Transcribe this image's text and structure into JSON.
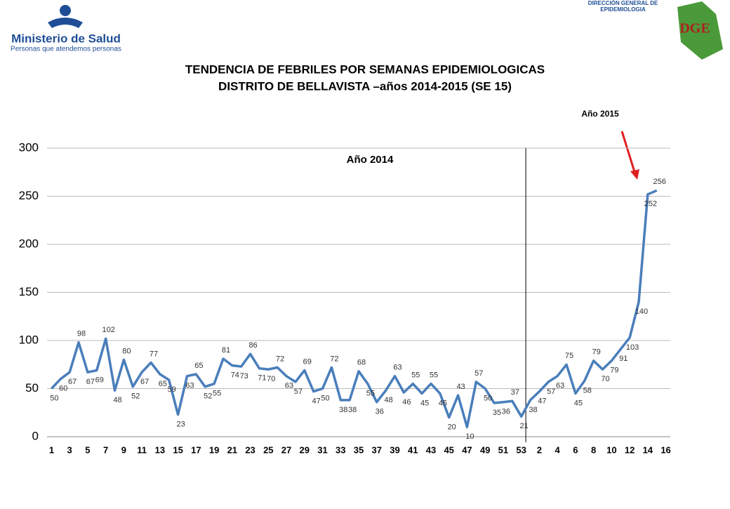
{
  "header": {
    "ministry": "Ministerio de Salud",
    "ministry_tagline": "Personas que atendemos personas",
    "office": "DIRECCIÓN GENERAL DE EPIDEMIOLOGIA",
    "office_logo": "DGE"
  },
  "chart_data": {
    "type": "line",
    "title": "TENDENCIA DE FEBRILES POR SEMANAS EPIDEMIOLOGICAS",
    "subtitle": "DISTRITO DE BELLAVISTA –años 2014-2015 (SE 15)",
    "annotations": [
      "Año 2014",
      "Año 2015"
    ],
    "categories": [
      1,
      null,
      3,
      null,
      5,
      null,
      7,
      null,
      9,
      null,
      11,
      null,
      13,
      null,
      15,
      null,
      17,
      null,
      19,
      null,
      21,
      null,
      23,
      null,
      25,
      null,
      27,
      null,
      29,
      null,
      31,
      null,
      33,
      null,
      35,
      null,
      37,
      null,
      39,
      null,
      41,
      null,
      43,
      null,
      45,
      null,
      47,
      null,
      49,
      null,
      51,
      null,
      53,
      null,
      2,
      null,
      4,
      null,
      6,
      null,
      8,
      null,
      10,
      null,
      12,
      null,
      14,
      null,
      16
    ],
    "series": [
      {
        "name": "Febriles",
        "color": "#4a7ebb",
        "values": [
          50,
          60,
          67,
          98,
          67,
          69,
          102,
          48,
          80,
          52,
          67,
          77,
          65,
          59,
          23,
          63,
          65,
          52,
          55,
          81,
          74,
          73,
          86,
          71,
          70,
          72,
          63,
          57,
          69,
          47,
          50,
          72,
          38,
          38,
          68,
          55,
          36,
          48,
          63,
          46,
          55,
          45,
          55,
          45,
          20,
          43,
          10,
          57,
          50,
          35,
          36,
          37,
          21,
          38,
          47,
          57,
          63,
          75,
          45,
          58,
          79,
          70,
          79,
          91,
          103,
          140,
          252,
          256,
          null
        ]
      }
    ],
    "ylim": [
      0,
      300
    ],
    "yticks": [
      0,
      50,
      100,
      150,
      200,
      250,
      300
    ],
    "grid": true
  }
}
